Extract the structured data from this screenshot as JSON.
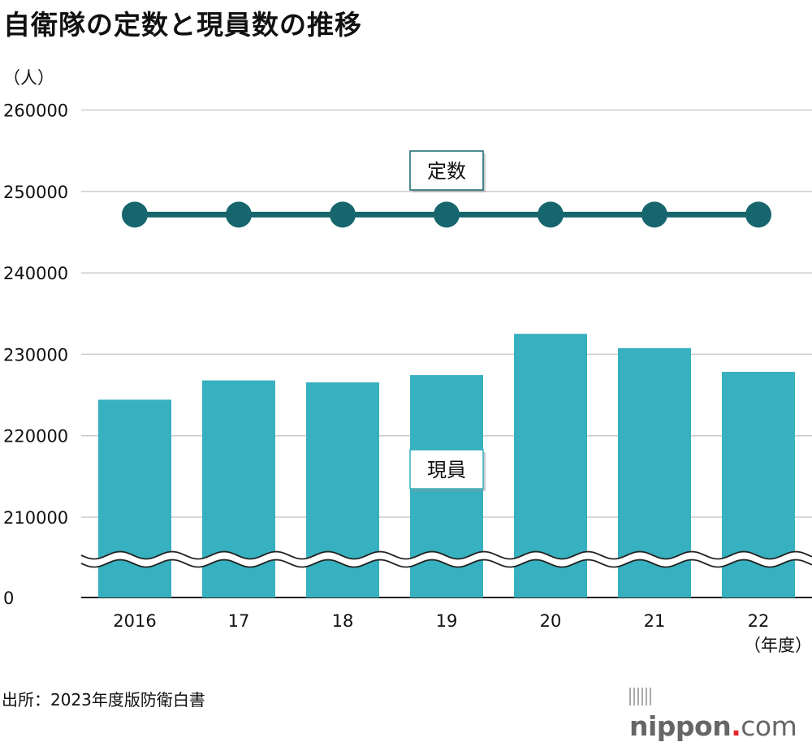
{
  "title": "自衛隊の定数と現員数の推移",
  "source": "出所：2023年度版防衛白書",
  "logo": {
    "name": "nippon",
    "dot": ".",
    "com": "com"
  },
  "chart_data": {
    "type": "bar+line",
    "title": "自衛隊の定数と現員数の推移",
    "ylabel": "（人）",
    "xlabel": "（年度）",
    "categories": [
      "2016",
      "17",
      "18",
      "19",
      "20",
      "21",
      "22"
    ],
    "yticks": [
      "0",
      "210000",
      "220000",
      "230000",
      "240000",
      "250000",
      "260000"
    ],
    "ylim_broken": [
      205000,
      260000
    ],
    "axis_break": "between 0 and 210000",
    "grid": true,
    "series": [
      {
        "name": "定数",
        "type": "line",
        "color": "#17666e",
        "values": [
          247154,
          247154,
          247154,
          247154,
          247154,
          247154,
          247154
        ]
      },
      {
        "name": "現員",
        "type": "bar",
        "color": "#37b0bf",
        "values": [
          224422,
          226789,
          226547,
          227442,
          232509,
          230754,
          227843
        ]
      }
    ]
  }
}
